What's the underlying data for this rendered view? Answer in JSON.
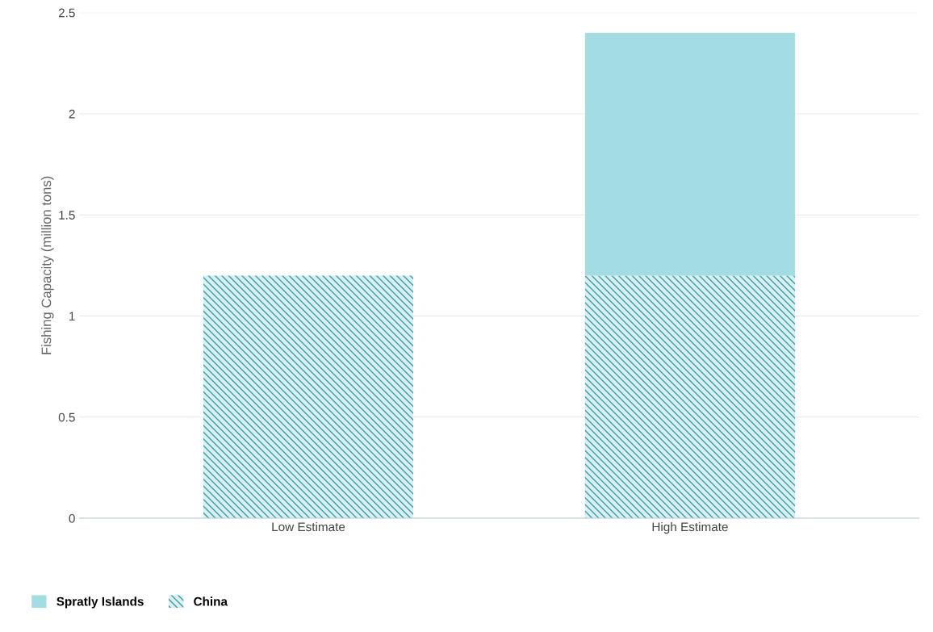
{
  "chart_data": {
    "type": "bar",
    "stacked": true,
    "ylabel": "Fishing Capacity (million tons)",
    "categories": [
      "Low Estimate",
      "High Estimate"
    ],
    "series": [
      {
        "name": "China",
        "color": "#3d9ea6",
        "values": [
          1.2,
          1.2
        ]
      },
      {
        "name": "Spratly Islands",
        "color": "#a3dde3",
        "values": [
          0,
          1.2
        ]
      }
    ],
    "ylim": [
      0,
      2.5
    ],
    "yticks": [
      0,
      0.5,
      1,
      1.5,
      2,
      2.5
    ],
    "grid": "y",
    "legend": "bottom left"
  }
}
